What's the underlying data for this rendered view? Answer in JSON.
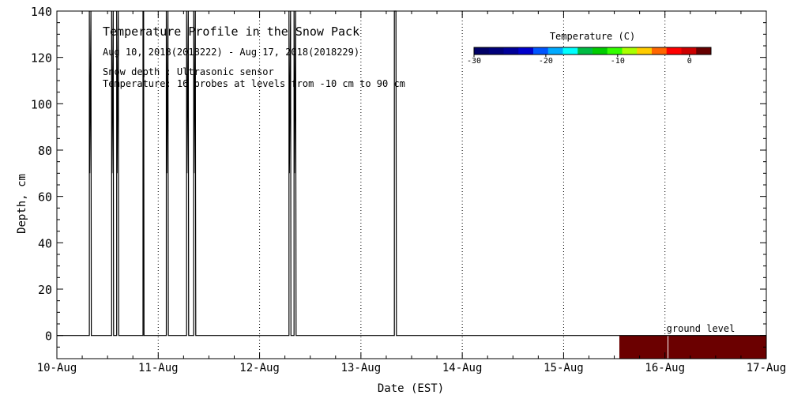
{
  "chart_data": {
    "type": "line",
    "title": "Temperature Profile in the Snow Pack",
    "subtitle_dates": "Aug 10, 2018(2018222) - Aug 17, 2018(2018229)",
    "note_snow": "Snow depth : Ultrasonic sensor",
    "note_temp": "Temperature: 16 probes at levels from -10 cm to 90 cm",
    "xlabel": "Date (EST)",
    "ylabel": "Depth, cm",
    "x_ticks": [
      "10-Aug",
      "11-Aug",
      "12-Aug",
      "13-Aug",
      "14-Aug",
      "15-Aug",
      "16-Aug",
      "17-Aug"
    ],
    "xlim": [
      0,
      7
    ],
    "ylim": [
      -10,
      140
    ],
    "y_ticks": [
      0,
      20,
      40,
      60,
      80,
      100,
      120,
      140
    ],
    "ground_label": "ground level",
    "colorbar": {
      "title": "Temperature (C)",
      "range": [
        -30,
        3
      ],
      "ticks": [
        -30,
        -20,
        -10,
        0
      ],
      "colors": [
        "#000066",
        "#00007a",
        "#000099",
        "#0000cc",
        "#0055ff",
        "#00aaff",
        "#00ffff",
        "#00bb44",
        "#00cc00",
        "#33ff00",
        "#aaff00",
        "#ffcc00",
        "#ff6600",
        "#ff0000",
        "#cc0000",
        "#660000"
      ]
    },
    "snow_depth_spikes": [
      {
        "x0": 0.32,
        "x1": 0.34,
        "top": 140,
        "bottom": 70
      },
      {
        "x0": 0.54,
        "x1": 0.56,
        "top": 140,
        "bottom": 70
      },
      {
        "x0": 0.59,
        "x1": 0.61,
        "top": 140,
        "bottom": 70
      },
      {
        "x0": 0.85,
        "x1": 0.86,
        "top": 140,
        "bottom": 70
      },
      {
        "x0": 1.08,
        "x1": 1.1,
        "top": 140,
        "bottom": 70
      },
      {
        "x0": 1.28,
        "x1": 1.3,
        "top": 140,
        "bottom": 70
      },
      {
        "x0": 1.35,
        "x1": 1.37,
        "top": 140,
        "bottom": 70
      },
      {
        "x0": 2.29,
        "x1": 2.31,
        "top": 140,
        "bottom": 70
      },
      {
        "x0": 2.34,
        "x1": 2.36,
        "top": 140,
        "bottom": 70
      },
      {
        "x0": 3.33,
        "x1": 3.35,
        "top": 140,
        "bottom": 140
      }
    ],
    "snow_depth_baseline": 0,
    "ground_temperature_block": {
      "x_start": 5.55,
      "x_end": 7.0,
      "y_top": 0,
      "y_bottom": -10,
      "color": "#6b0000"
    }
  }
}
